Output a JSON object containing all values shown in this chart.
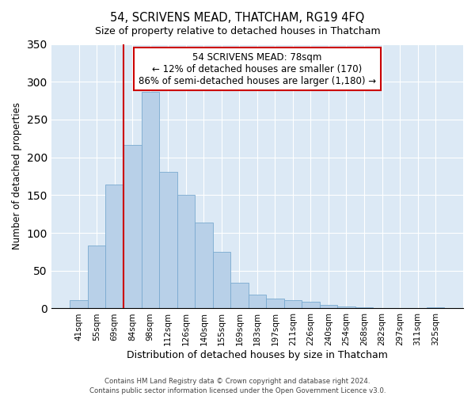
{
  "title": "54, SCRIVENS MEAD, THATCHAM, RG19 4FQ",
  "subtitle": "Size of property relative to detached houses in Thatcham",
  "xlabel": "Distribution of detached houses by size in Thatcham",
  "ylabel": "Number of detached properties",
  "bar_labels": [
    "41sqm",
    "55sqm",
    "69sqm",
    "84sqm",
    "98sqm",
    "112sqm",
    "126sqm",
    "140sqm",
    "155sqm",
    "169sqm",
    "183sqm",
    "197sqm",
    "211sqm",
    "226sqm",
    "240sqm",
    "254sqm",
    "268sqm",
    "282sqm",
    "297sqm",
    "311sqm",
    "325sqm"
  ],
  "bar_values": [
    11,
    83,
    164,
    216,
    287,
    181,
    150,
    114,
    75,
    34,
    18,
    13,
    11,
    9,
    5,
    3,
    2,
    1,
    1,
    0,
    2
  ],
  "bar_color": "#b8d0e8",
  "bar_edge_color": "#7aaad0",
  "vline_x": 2.5,
  "vline_color": "#cc0000",
  "annotation_title": "54 SCRIVENS MEAD: 78sqm",
  "annotation_line1": "← 12% of detached houses are smaller (170)",
  "annotation_line2": "86% of semi-detached houses are larger (1,180) →",
  "annotation_box_facecolor": "#ffffff",
  "annotation_box_edgecolor": "#cc0000",
  "ylim": [
    0,
    350
  ],
  "yticks": [
    0,
    50,
    100,
    150,
    200,
    250,
    300,
    350
  ],
  "grid_color": "#ffffff",
  "bg_color": "#dce9f5",
  "footer1": "Contains HM Land Registry data © Crown copyright and database right 2024.",
  "footer2": "Contains public sector information licensed under the Open Government Licence v3.0."
}
